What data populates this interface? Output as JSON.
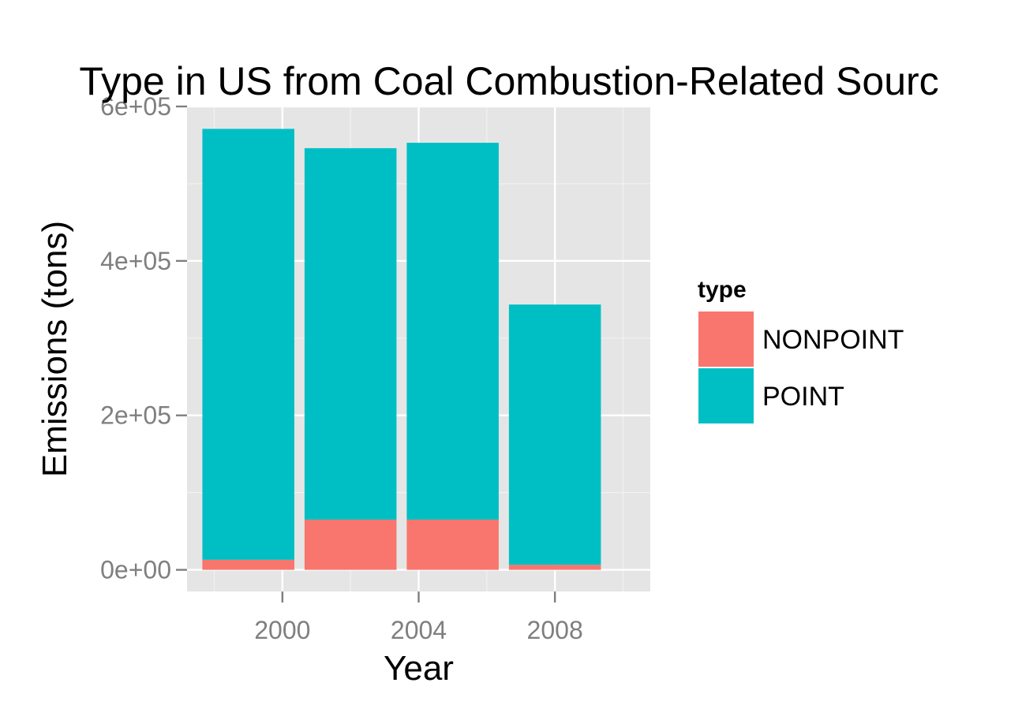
{
  "chart_data": {
    "type": "bar",
    "stacked": true,
    "title": "Type in US from Coal Combustion-Related Sourc",
    "xlabel": "Year",
    "ylabel": "Emissions (tons)",
    "categories": [
      1999,
      2002,
      2005,
      2008
    ],
    "x_ticks": [
      2000,
      2004,
      2008
    ],
    "x_tick_labels": [
      "2000",
      "2004",
      "2008"
    ],
    "y_ticks": [
      0,
      200000,
      400000,
      600000
    ],
    "y_tick_labels": [
      "0e+00",
      "2e+05",
      "4e+05",
      "6e+05"
    ],
    "xlim": [
      1997.2,
      2010.8
    ],
    "ylim": [
      -28000,
      600000
    ],
    "grid": true,
    "legend": {
      "title": "type",
      "position": "right"
    },
    "series": [
      {
        "name": "NONPOINT",
        "color": "#F8766D",
        "values": [
          13000,
          65000,
          65000,
          6500
        ]
      },
      {
        "name": "POINT",
        "color": "#00BFC4",
        "values": [
          558000,
          481000,
          488000,
          337000
        ]
      }
    ]
  }
}
